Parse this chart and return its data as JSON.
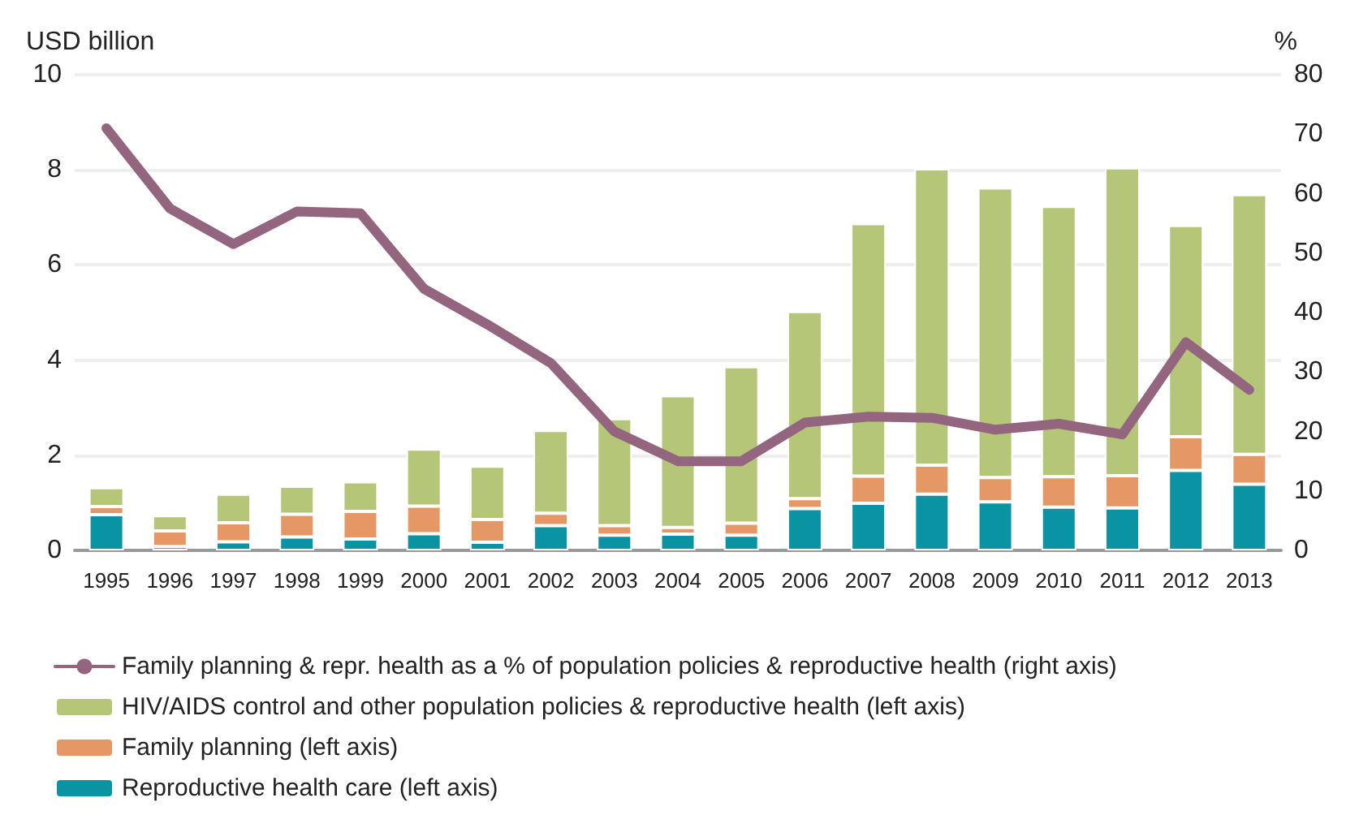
{
  "chart_data": {
    "type": "bar",
    "stacked": true,
    "ylabel": "USD billion",
    "y2label": "%",
    "categories": [
      "1995",
      "1996",
      "1997",
      "1998",
      "1999",
      "2000",
      "2001",
      "2002",
      "2003",
      "2004",
      "2005",
      "2006",
      "2007",
      "2008",
      "2009",
      "2010",
      "2011",
      "2012",
      "2013"
    ],
    "series": [
      {
        "name": "Reproductive health care (left axis)",
        "color": "#0a93a3",
        "values": [
          0.75,
          0.08,
          0.18,
          0.28,
          0.24,
          0.35,
          0.17,
          0.52,
          0.32,
          0.34,
          0.32,
          0.88,
          0.99,
          1.18,
          1.02,
          0.91,
          0.89,
          1.68,
          1.39
        ]
      },
      {
        "name": "Family planning (left axis)",
        "color": "#e59866",
        "values": [
          0.17,
          0.33,
          0.4,
          0.48,
          0.58,
          0.58,
          0.48,
          0.26,
          0.2,
          0.14,
          0.25,
          0.21,
          0.57,
          0.61,
          0.51,
          0.64,
          0.68,
          0.71,
          0.63
        ]
      },
      {
        "name": "HIV/AIDS control and other population policies & reproductive health (left axis)",
        "color": "#b5c679",
        "values": [
          0.4,
          0.32,
          0.6,
          0.59,
          0.62,
          1.2,
          1.12,
          1.74,
          2.25,
          2.77,
          3.29,
          3.93,
          5.31,
          6.23,
          6.09,
          5.68,
          6.47,
          4.44,
          5.46
        ]
      },
      {
        "name": "Family planning & repr. health as a % of population policies & reproductive health (right axis)",
        "type": "line",
        "axis": "y2",
        "color": "#94657f",
        "values": [
          71,
          57.5,
          51.5,
          57,
          56.7,
          44,
          38,
          31.5,
          20,
          15,
          15,
          21.5,
          22.5,
          22.3,
          20.3,
          21.3,
          19.5,
          35,
          27
        ]
      }
    ],
    "ylim": [
      0,
      10
    ],
    "yticks": [
      0,
      2,
      4,
      6,
      8,
      10
    ],
    "y2lim": [
      0,
      80
    ],
    "y2ticks": [
      0,
      10,
      20,
      30,
      40,
      50,
      60,
      70,
      80
    ],
    "grid": "y",
    "legend": "bottom",
    "marker": "none"
  }
}
